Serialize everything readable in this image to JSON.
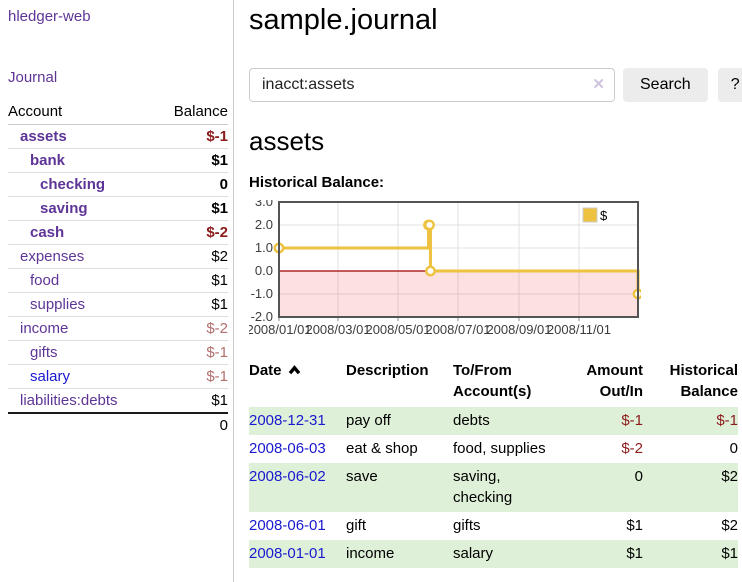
{
  "sidebar": {
    "app_title": "hledger-web",
    "nav": {
      "journal": "Journal"
    },
    "accounts_table": {
      "headers": {
        "account": "Account",
        "balance": "Balance"
      },
      "rows": [
        {
          "name": "assets",
          "indent": 1,
          "bold": true,
          "balance": "$-1",
          "balance_class": "neg",
          "link_class": "purple"
        },
        {
          "name": "bank",
          "indent": 2,
          "bold": true,
          "balance": "$1",
          "balance_class": "pos",
          "link_class": "purple"
        },
        {
          "name": "checking",
          "indent": 3,
          "bold": true,
          "balance": "0",
          "balance_class": "pos",
          "link_class": "purple"
        },
        {
          "name": "saving",
          "indent": 3,
          "bold": true,
          "balance": "$1",
          "balance_class": "pos",
          "link_class": "purple"
        },
        {
          "name": "cash",
          "indent": 2,
          "bold": true,
          "balance": "$-2",
          "balance_class": "neg",
          "link_class": "purple"
        },
        {
          "name": "expenses",
          "indent": 1,
          "bold": false,
          "balance": "$2",
          "balance_class": "pos",
          "link_class": "purple"
        },
        {
          "name": "food",
          "indent": 2,
          "bold": false,
          "balance": "$1",
          "balance_class": "pos",
          "link_class": "purple"
        },
        {
          "name": "supplies",
          "indent": 2,
          "bold": false,
          "balance": "$1",
          "balance_class": "pos",
          "link_class": "purple"
        },
        {
          "name": "income",
          "indent": 1,
          "bold": false,
          "balance": "$-2",
          "balance_class": "neg-soft",
          "link_class": "purple"
        },
        {
          "name": "gifts",
          "indent": 2,
          "bold": false,
          "balance": "$-1",
          "balance_class": "neg-soft",
          "link_class": "purple"
        },
        {
          "name": "salary",
          "indent": 2,
          "bold": false,
          "balance": "$-1",
          "balance_class": "neg-soft",
          "link_class": "blue"
        },
        {
          "name": "liabilities:debts",
          "indent": 1,
          "bold": false,
          "balance": "$1",
          "balance_class": "pos",
          "link_class": "purple"
        }
      ],
      "total": "0"
    }
  },
  "main": {
    "title": "sample.journal",
    "search": {
      "value": "inacct:assets",
      "clear_icon": "✕",
      "search_button": "Search",
      "help_button": "?"
    },
    "account_heading": "assets",
    "chart_label": "Historical Balance:"
  },
  "chart_data": {
    "type": "line",
    "step": true,
    "title": "Historical Balance",
    "series": [
      {
        "name": "$",
        "color": "#edc240",
        "points": [
          {
            "date": "2008-01-01",
            "day": 0,
            "value": 1
          },
          {
            "date": "2008-06-01",
            "day": 152,
            "value": 2
          },
          {
            "date": "2008-06-02",
            "day": 153,
            "value": 2
          },
          {
            "date": "2008-06-03",
            "day": 154,
            "value": 0
          },
          {
            "date": "2008-12-31",
            "day": 365,
            "value": -1
          }
        ]
      }
    ],
    "x_span_days": 365,
    "x_ticks": [
      {
        "label": "2008/01/01",
        "day": 0
      },
      {
        "label": "2008/03/01",
        "day": 60
      },
      {
        "label": "2008/05/01",
        "day": 121
      },
      {
        "label": "2008/07/01",
        "day": 182
      },
      {
        "label": "2008/09/01",
        "day": 244
      },
      {
        "label": "2008/11/01",
        "day": 305
      }
    ],
    "y_ticks": [
      {
        "label": "3.0",
        "value": 3
      },
      {
        "label": "2.0",
        "value": 2
      },
      {
        "label": "1.0",
        "value": 1
      },
      {
        "label": "0.0",
        "value": 0
      },
      {
        "label": "-1.0",
        "value": -1
      },
      {
        "label": "-2.0",
        "value": -2
      }
    ],
    "ylim": [
      -2,
      3
    ],
    "grid": true,
    "legend": {
      "label": "$",
      "position": "top-right"
    },
    "colors": {
      "line": "#edc240",
      "marker_fill": "#ffffff",
      "negative_region": "rgba(240,70,70,0.16)",
      "zero_line": "#a40000",
      "grid": "#e0e0e0",
      "border": "#545454",
      "tick_text": "#3c3c3c",
      "legend_swatch_border": "#cccccc"
    }
  },
  "register_table": {
    "headers": [
      {
        "label": "Date",
        "align": "left",
        "sort": "asc"
      },
      {
        "label": "Description",
        "align": "left"
      },
      {
        "label": "To/From Account(s)",
        "align": "left"
      },
      {
        "label": "Amount Out/In",
        "align": "right"
      },
      {
        "label": "Historical Balance",
        "align": "right"
      }
    ],
    "rows": [
      {
        "date": "2008-12-31",
        "description": "pay off",
        "accounts": "debts",
        "amount": "$-1",
        "amount_neg": true,
        "balance": "$-1",
        "balance_neg": true,
        "highlight": true
      },
      {
        "date": "2008-06-03",
        "description": "eat & shop",
        "accounts": "food, supplies",
        "amount": "$-2",
        "amount_neg": true,
        "balance": "0",
        "balance_neg": false,
        "highlight": false
      },
      {
        "date": "2008-06-02",
        "description": "save",
        "accounts": "saving, checking",
        "amount": "0",
        "amount_neg": false,
        "balance": "$2",
        "balance_neg": false,
        "highlight": true
      },
      {
        "date": "2008-06-01",
        "description": "gift",
        "accounts": "gifts",
        "amount": "$1",
        "amount_neg": false,
        "balance": "$2",
        "balance_neg": false,
        "highlight": false
      },
      {
        "date": "2008-01-01",
        "description": "income",
        "accounts": "salary",
        "amount": "$1",
        "amount_neg": false,
        "balance": "$1",
        "balance_neg": false,
        "highlight": true
      }
    ]
  },
  "colors": {
    "link_purple": "#5e3597",
    "link_blue": "#1919cf",
    "negative_strong": "#8c1b1b",
    "negative_soft": "#b26d6d",
    "row_highlight_green": "#dff0d8",
    "button_bg": "#ececec"
  }
}
